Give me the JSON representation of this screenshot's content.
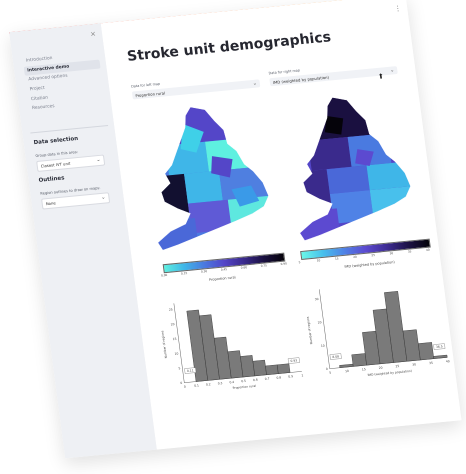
{
  "sidebar": {
    "close_glyph": "×",
    "nav": [
      {
        "label": "Introduction",
        "active": false
      },
      {
        "label": "Interactive demo",
        "active": true
      },
      {
        "label": "Advanced options",
        "active": false
      },
      {
        "label": "Project",
        "active": false
      },
      {
        "label": "Citation",
        "active": false
      },
      {
        "label": "Resources",
        "active": false
      }
    ],
    "data_selection_heading": "Data selection",
    "group_label": "Group data in this area:",
    "group_value": "Closest IVT unit",
    "outlines_heading": "Outlines",
    "outline_label": "Region outlines to draw on maps:",
    "outline_value": "None"
  },
  "main": {
    "title": "Stroke unit demographics",
    "menu_glyph": "⋮",
    "left_label": "Data for left map",
    "left_value": "Proportion rural",
    "right_label": "Data for right map",
    "right_value": "IMD (weighted by population)"
  },
  "left_colorbar": {
    "ticks": [
      "0.00",
      "0.15",
      "0.30",
      "0.45",
      "0.60",
      "0.75",
      "0.90"
    ],
    "caption": "Proportion rural"
  },
  "right_colorbar": {
    "ticks": [
      "5",
      "10",
      "15",
      "20",
      "25",
      "30",
      "35",
      "40"
    ],
    "caption": "IMD (weighted by population)"
  },
  "chart_data": [
    {
      "type": "bar",
      "xlabel": "Proportion rural",
      "ylabel": "Number of regions",
      "x_ticks": [
        "0",
        "0.1",
        "0.2",
        "0.3",
        "0.4",
        "0.5",
        "0.6",
        "0.7",
        "0.8",
        "0.9",
        "1"
      ],
      "y_ticks": [
        "0",
        "5",
        "10",
        "15",
        "20",
        "25"
      ],
      "ylim": [
        0,
        27
      ],
      "bins": [
        [
          0.1,
          0.2
        ],
        [
          0.2,
          0.3
        ],
        [
          0.3,
          0.4
        ],
        [
          0.4,
          0.5
        ],
        [
          0.5,
          0.6
        ],
        [
          0.6,
          0.7
        ],
        [
          0.7,
          0.8
        ],
        [
          0.8,
          0.9
        ]
      ],
      "values": [
        24,
        22,
        14,
        9,
        7,
        5,
        3,
        3
      ],
      "boxed_labels": [
        "0.11",
        "0.93"
      ]
    },
    {
      "type": "bar",
      "xlabel": "IMD (weighted by population)",
      "ylabel": "Number of regions",
      "x_ticks": [
        "5",
        "10",
        "15",
        "20",
        "25",
        "30",
        "35",
        "40"
      ],
      "y_ticks": [
        "0",
        "10",
        "20",
        "30"
      ],
      "ylim": [
        0,
        34
      ],
      "bins": [
        [
          8,
          12
        ],
        [
          12,
          16
        ],
        [
          16,
          20
        ],
        [
          20,
          24
        ],
        [
          24,
          28
        ],
        [
          28,
          32
        ],
        [
          32,
          36
        ],
        [
          36,
          40
        ]
      ],
      "values": [
        1,
        5,
        14,
        23,
        30,
        13,
        7,
        1
      ],
      "boxed_labels": [
        "8.08",
        "36.5"
      ]
    }
  ]
}
